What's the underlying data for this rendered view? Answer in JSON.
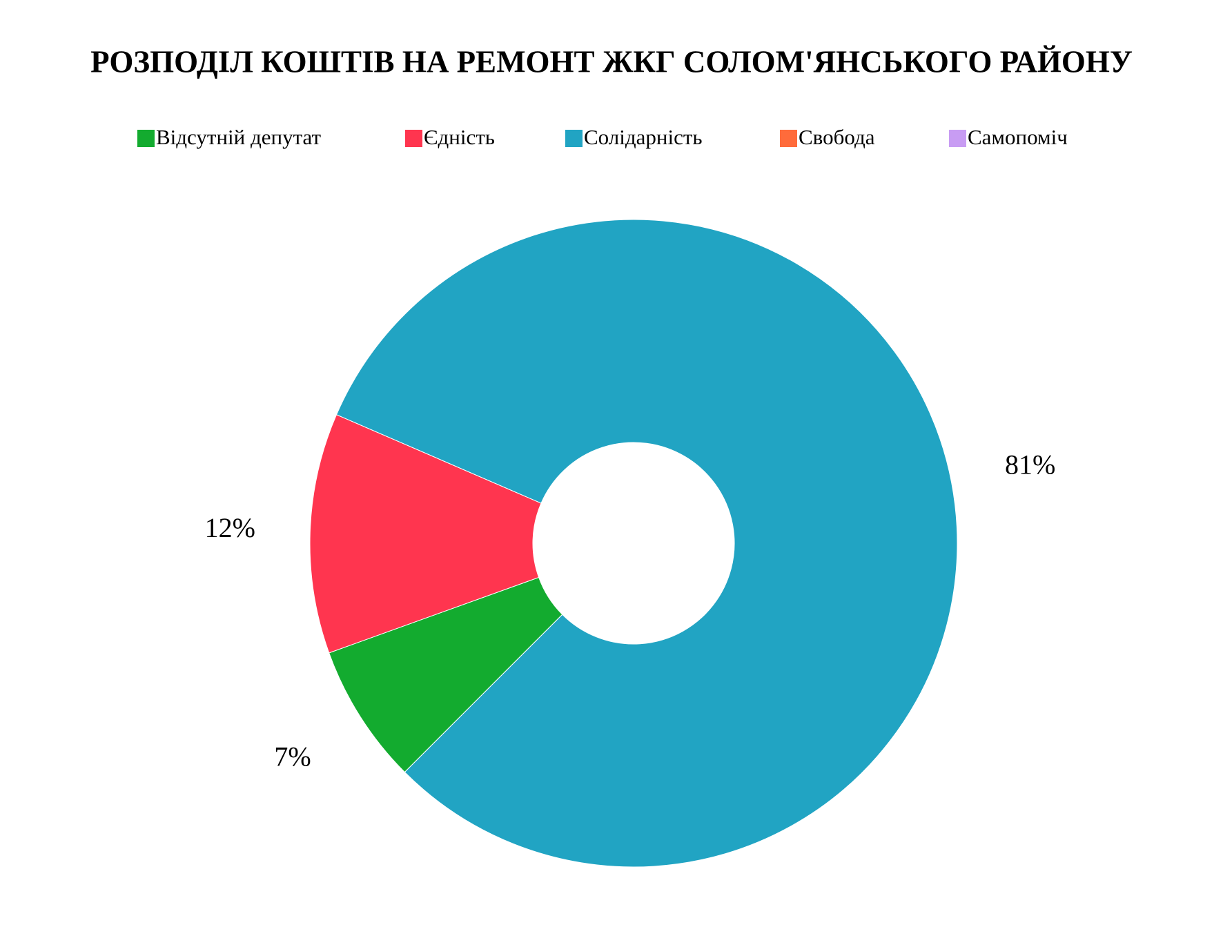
{
  "chart_data": {
    "type": "pie",
    "title": "РОЗПОДІЛ КОШТІВ НА РЕМОНТ ЖКГ СОЛОМ'ЯНСЬКОГО РАЙОНУ",
    "categories": [
      "Відсутній депутат",
      "Єдність",
      "Солідарність",
      "Свобода",
      "Самопоміч"
    ],
    "values": [
      7,
      12,
      81,
      0,
      0
    ],
    "value_labels": [
      "7%",
      "12%",
      "81%",
      null,
      null
    ],
    "colors": [
      "#13ab2f",
      "#ff354f",
      "#21a4c3",
      "#ff6b3b",
      "#c89cf3"
    ]
  }
}
